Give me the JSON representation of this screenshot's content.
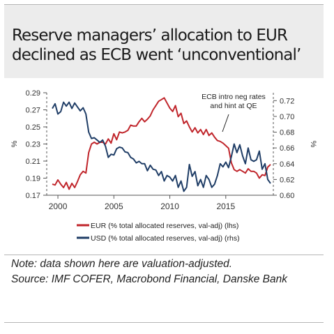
{
  "title": "Reserve managers’ allocation to EUR declined as ECB went ‘unconventional’",
  "note_line1": "Note: data shown here are valuation-adjusted.",
  "note_line2": "Source: IMF COFER, Macrobond Financial, Danske Bank",
  "colors": {
    "eur": "#c0252b",
    "usd": "#1f3d66",
    "axis": "#555555"
  },
  "chart_data": {
    "type": "line",
    "title": "Reserve managers’ allocation to EUR declined as ECB went ‘unconventional’",
    "annotation": "ECB intro neg rates and hint at QE",
    "left_axis": {
      "label": "%",
      "ylim": [
        0.17,
        0.29
      ],
      "ticks": [
        "0.29",
        "0.27",
        "0.25",
        "0.23",
        "0.21",
        "0.19",
        "0.17"
      ],
      "tick_values": [
        0.29,
        0.27,
        0.25,
        0.23,
        0.21,
        0.19,
        0.17
      ]
    },
    "right_axis": {
      "label": "%",
      "ylim": [
        0.6,
        0.73
      ],
      "ticks": [
        "0.72",
        "0.70",
        "0.68",
        "0.66",
        "0.64",
        "0.62",
        "0.60"
      ],
      "tick_values": [
        0.72,
        0.7,
        0.68,
        0.66,
        0.64,
        0.62,
        0.6
      ]
    },
    "x_axis": {
      "xlim": [
        1999.0,
        2019.25
      ],
      "ticks": [
        "2000",
        "2005",
        "2010",
        "2015"
      ],
      "tick_values": [
        2000,
        2005,
        2010,
        2015
      ]
    },
    "legend": [
      "EUR (% total allocated reserves, val-adj) (lhs)",
      "USD (% total allocated reserves, val-adj) (rhs)"
    ],
    "grid": false,
    "series": [
      {
        "name": "EUR (% total allocated reserves, val-adj) (lhs)",
        "axis": "left",
        "x": [
          1999.5,
          1999.75,
          2000.0,
          2000.25,
          2000.5,
          2000.75,
          2001.0,
          2001.25,
          2001.5,
          2001.75,
          2002.0,
          2002.25,
          2002.5,
          2002.75,
          2003.0,
          2003.25,
          2003.5,
          2003.75,
          2004.0,
          2004.25,
          2004.5,
          2004.75,
          2005.0,
          2005.25,
          2005.5,
          2005.75,
          2006.0,
          2006.25,
          2006.5,
          2006.75,
          2007.0,
          2007.25,
          2007.5,
          2007.75,
          2008.0,
          2008.25,
          2008.5,
          2008.75,
          2009.0,
          2009.25,
          2009.5,
          2009.75,
          2010.0,
          2010.25,
          2010.5,
          2010.75,
          2011.0,
          2011.25,
          2011.5,
          2011.75,
          2012.0,
          2012.25,
          2012.5,
          2012.75,
          2013.0,
          2013.25,
          2013.5,
          2013.75,
          2014.0,
          2014.25,
          2014.5,
          2014.75,
          2015.0,
          2015.25,
          2015.5,
          2015.75,
          2016.0,
          2016.25,
          2016.5,
          2016.75,
          2017.0,
          2017.25,
          2017.5,
          2017.75,
          2018.0,
          2018.25,
          2018.5,
          2018.75,
          2019.0
        ],
        "values": [
          0.183,
          0.182,
          0.188,
          0.183,
          0.179,
          0.185,
          0.177,
          0.184,
          0.179,
          0.186,
          0.194,
          0.198,
          0.196,
          0.22,
          0.23,
          0.232,
          0.23,
          0.232,
          0.232,
          0.23,
          0.236,
          0.231,
          0.242,
          0.235,
          0.244,
          0.243,
          0.244,
          0.246,
          0.252,
          0.251,
          0.251,
          0.256,
          0.26,
          0.256,
          0.259,
          0.263,
          0.27,
          0.275,
          0.28,
          0.282,
          0.284,
          0.278,
          0.272,
          0.268,
          0.275,
          0.262,
          0.266,
          0.254,
          0.257,
          0.25,
          0.244,
          0.249,
          0.243,
          0.247,
          0.241,
          0.247,
          0.24,
          0.243,
          0.238,
          0.234,
          0.233,
          0.231,
          0.228,
          0.225,
          0.208,
          0.2,
          0.198,
          0.2,
          0.198,
          0.196,
          0.201,
          0.198,
          0.198,
          0.196,
          0.19,
          0.194,
          0.193,
          0.203,
          0.206
        ]
      },
      {
        "name": "USD (% total allocated reserves, val-adj) (rhs)",
        "axis": "right",
        "x": [
          1999.5,
          1999.75,
          2000.0,
          2000.25,
          2000.5,
          2000.75,
          2001.0,
          2001.25,
          2001.5,
          2001.75,
          2002.0,
          2002.25,
          2002.5,
          2002.75,
          2003.0,
          2003.25,
          2003.5,
          2003.75,
          2004.0,
          2004.25,
          2004.5,
          2004.75,
          2005.0,
          2005.25,
          2005.5,
          2005.75,
          2006.0,
          2006.25,
          2006.5,
          2006.75,
          2007.0,
          2007.25,
          2007.5,
          2007.75,
          2008.0,
          2008.25,
          2008.5,
          2008.75,
          2009.0,
          2009.25,
          2009.5,
          2009.75,
          2010.0,
          2010.25,
          2010.5,
          2010.75,
          2011.0,
          2011.25,
          2011.5,
          2011.75,
          2012.0,
          2012.25,
          2012.5,
          2012.75,
          2013.0,
          2013.25,
          2013.5,
          2013.75,
          2014.0,
          2014.25,
          2014.5,
          2014.75,
          2015.0,
          2015.25,
          2015.5,
          2015.75,
          2016.0,
          2016.25,
          2016.5,
          2016.75,
          2017.0,
          2017.25,
          2017.5,
          2017.75,
          2018.0,
          2018.25,
          2018.5,
          2018.75,
          2019.0
        ],
        "values": [
          0.71,
          0.716,
          0.703,
          0.706,
          0.718,
          0.713,
          0.718,
          0.71,
          0.717,
          0.712,
          0.707,
          0.711,
          0.703,
          0.68,
          0.672,
          0.673,
          0.67,
          0.667,
          0.67,
          0.662,
          0.648,
          0.652,
          0.651,
          0.659,
          0.661,
          0.66,
          0.655,
          0.654,
          0.648,
          0.646,
          0.641,
          0.643,
          0.64,
          0.64,
          0.631,
          0.638,
          0.633,
          0.632,
          0.625,
          0.63,
          0.618,
          0.625,
          0.623,
          0.618,
          0.625,
          0.61,
          0.618,
          0.605,
          0.61,
          0.639,
          0.624,
          0.63,
          0.612,
          0.62,
          0.61,
          0.625,
          0.62,
          0.61,
          0.614,
          0.625,
          0.64,
          0.636,
          0.642,
          0.635,
          0.649,
          0.665,
          0.654,
          0.664,
          0.65,
          0.64,
          0.66,
          0.645,
          0.643,
          0.645,
          0.656,
          0.633,
          0.64,
          0.62,
          0.615
        ]
      }
    ]
  }
}
